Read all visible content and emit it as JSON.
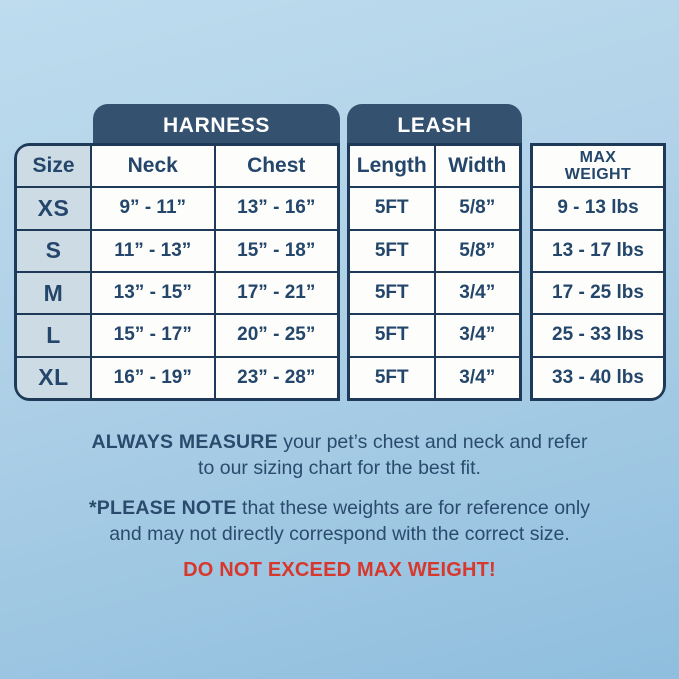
{
  "colors": {
    "background_top": "#bedcee",
    "background_bottom": "#8fbede",
    "tab_navy": "#34516f",
    "border_navy": "#1e3a58",
    "text_navy": "#24466b",
    "size_column_bg": "#cddce4",
    "cell_bg": "#fdfdfb",
    "warning_red": "#d7382e"
  },
  "chart_data": {
    "type": "table",
    "column_groups": [
      {
        "label": "HARNESS",
        "columns": [
          "Neck",
          "Chest"
        ]
      },
      {
        "label": "LEASH",
        "columns": [
          "Length",
          "Width"
        ]
      }
    ],
    "columns": [
      "Size",
      "Neck",
      "Chest",
      "Length",
      "Width",
      "MAX WEIGHT"
    ],
    "max_weight_header_lines": [
      "MAX",
      "WEIGHT"
    ],
    "rows": [
      [
        "XS",
        "9” - 11”",
        "13” - 16”",
        "5FT",
        "5/8”",
        "9 - 13 lbs"
      ],
      [
        "S",
        "11” - 13”",
        "15” - 18”",
        "5FT",
        "5/8”",
        "13 - 17 lbs"
      ],
      [
        "M",
        "13” - 15”",
        "17” - 21”",
        "5FT",
        "3/4”",
        "17 - 25 lbs"
      ],
      [
        "L",
        "15” - 17”",
        "20” - 25”",
        "5FT",
        "3/4”",
        "25 - 33 lbs"
      ],
      [
        "XL",
        "16” - 19”",
        "23” - 28”",
        "5FT",
        "3/4”",
        "33 - 40 lbs"
      ]
    ]
  },
  "notes": {
    "measure_bold": "ALWAYS MEASURE",
    "measure_line1_rest": " your pet’s chest and neck and refer",
    "measure_line2": "to our sizing chart for the best fit.",
    "please_bold": "*PLEASE NOTE",
    "please_line1_rest": " that these weights are for reference only",
    "please_line2": "and may not directly correspond with the correct size.",
    "warning": "DO NOT EXCEED MAX WEIGHT!"
  }
}
